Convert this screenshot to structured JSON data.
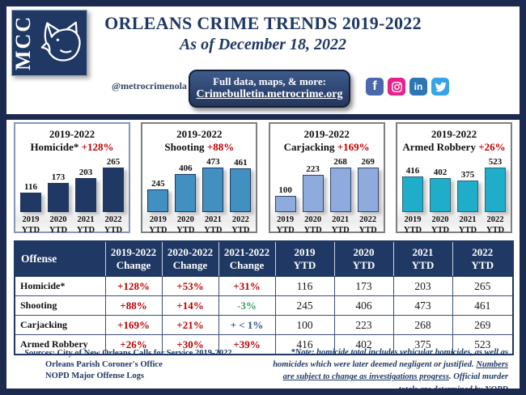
{
  "header": {
    "logo": {
      "text": "MCC"
    },
    "title": "ORLEANS CRIME TRENDS 2019-2022",
    "subtitle": "As of December 18, 2022",
    "handle": "@metrocrimenola",
    "infobox": {
      "line1": "Full data, maps, & more:",
      "link": "Crimebulletin.metrocrime.org"
    },
    "social": [
      {
        "name": "facebook",
        "color": "#4a69ad"
      },
      {
        "name": "instagram",
        "color": "#e7228c"
      },
      {
        "name": "linkedin",
        "color": "#2d76b4"
      },
      {
        "name": "twitter",
        "color": "#38a3ea"
      }
    ]
  },
  "chart_data": [
    {
      "type": "bar",
      "range": "2019-2022",
      "name": "Homicide*",
      "change": "+128%",
      "categories": [
        "2019 YTD",
        "2020 YTD",
        "2021 YTD",
        "2022 YTD"
      ],
      "values": [
        116,
        173,
        203,
        265
      ],
      "ylim": [
        0,
        265
      ],
      "bar_color": "#1f3864",
      "bar_border": "#1f3864",
      "card_border": "#8398bd"
    },
    {
      "type": "bar",
      "range": "2019-2022",
      "name": "Shooting",
      "change": "+88%",
      "categories": [
        "2019 YTD",
        "2020 YTD",
        "2021 YTD",
        "2022 YTD"
      ],
      "values": [
        245,
        406,
        473,
        461
      ],
      "ylim": [
        0,
        473
      ],
      "bar_color": "#4190c0",
      "bar_border": "#1f3864",
      "card_border": "#7f7f7f"
    },
    {
      "type": "bar",
      "range": "2019-2022",
      "name": "Carjacking",
      "change": "+169%",
      "categories": [
        "2019 YTD",
        "2020 YTD",
        "2021 YTD",
        "2022 YTD"
      ],
      "values": [
        100,
        223,
        268,
        269
      ],
      "ylim": [
        0,
        269
      ],
      "bar_color": "#8faadc",
      "bar_border": "#33476e",
      "card_border": "#7f7f7f"
    },
    {
      "type": "bar",
      "range": "2019-2022",
      "name": "Armed Robbery",
      "change": "+26%",
      "categories": [
        "2019 YTD",
        "2020 YTD",
        "2021 YTD",
        "2022 YTD"
      ],
      "values": [
        416,
        402,
        375,
        523
      ],
      "ylim": [
        0,
        523
      ],
      "bar_color": "#1fadc9",
      "bar_border": "#2e6576",
      "card_border": "#7f7f7f"
    }
  ],
  "table": {
    "header": [
      [
        "Offense"
      ],
      [
        "2019-2022",
        "Change"
      ],
      [
        "2020-2022",
        "Change"
      ],
      [
        "2021-2022",
        "Change"
      ],
      [
        "2019",
        "YTD"
      ],
      [
        "2020",
        "YTD"
      ],
      [
        "2021",
        "YTD"
      ],
      [
        "2022",
        "YTD"
      ]
    ],
    "tone_colors": {
      "red": "#c00000",
      "green": "#3a9d5d",
      "navy": "#2f5496"
    },
    "rows": [
      {
        "offense": "Homicide*",
        "changes": [
          {
            "text": "+128%",
            "tone": "red"
          },
          {
            "text": "+53%",
            "tone": "red"
          },
          {
            "text": "+31%",
            "tone": "red"
          }
        ],
        "counts": [
          "116",
          "173",
          "203",
          "265"
        ]
      },
      {
        "offense": "Shooting",
        "changes": [
          {
            "text": "+88%",
            "tone": "red"
          },
          {
            "text": "+14%",
            "tone": "red"
          },
          {
            "text": "-3%",
            "tone": "green"
          }
        ],
        "counts": [
          "245",
          "406",
          "473",
          "461"
        ]
      },
      {
        "offense": "Carjacking",
        "changes": [
          {
            "text": "+169%",
            "tone": "red"
          },
          {
            "text": "+21%",
            "tone": "red"
          },
          {
            "text": "+ < 1%",
            "tone": "navy"
          }
        ],
        "counts": [
          "100",
          "223",
          "268",
          "269"
        ]
      },
      {
        "offense": "Armed Robbery",
        "changes": [
          {
            "text": "+26%",
            "tone": "red"
          },
          {
            "text": "+30%",
            "tone": "red"
          },
          {
            "text": "+39%",
            "tone": "red"
          }
        ],
        "counts": [
          "416",
          "402",
          "375",
          "523"
        ]
      }
    ]
  },
  "footer": {
    "sources_label": "Sources:",
    "sources_lines": [
      "City of New Orleans Calls for Service 2019-2022",
      "Orleans Parish Coroner's Office",
      "NOPD Major Offense Logs"
    ],
    "note_before": "*Note: homicide total includes vehicular homicides, as well as homicides which were later deemed negligent or justified. ",
    "note_underline": "Numbers are subject to change as investigations progress",
    "note_after": ". Official murder totals are determined by NOPD"
  }
}
